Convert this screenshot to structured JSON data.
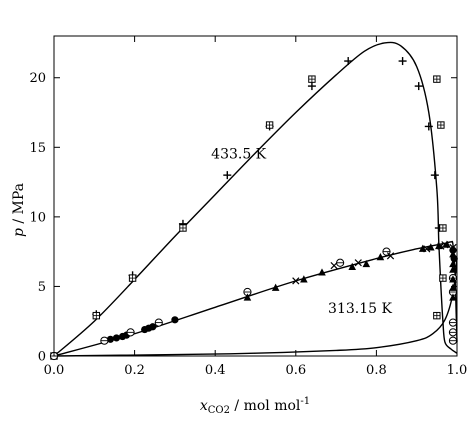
{
  "chart_data": {
    "type": "scatter",
    "xlabel": {
      "main": "x",
      "sub": "CO2",
      "rest": " / mol mol",
      "sup": "-1"
    },
    "ylabel": {
      "italic": "p",
      "rest": " / MPa"
    },
    "xlim": [
      0.0,
      1.0
    ],
    "ylim": [
      0,
      23
    ],
    "xticks": [
      0.0,
      0.2,
      0.4,
      0.6,
      0.8,
      1.0
    ],
    "xtick_labels": [
      "0.0",
      "0.2",
      "0.4",
      "0.6",
      "0.8",
      "1.0"
    ],
    "yticks": [
      0,
      5,
      10,
      15,
      20
    ],
    "ytick_labels": [
      "0",
      "5",
      "10",
      "15",
      "20"
    ],
    "grid": false,
    "annotations": [
      {
        "text": "433.5 K",
        "x": 0.39,
        "y": 14.2
      },
      {
        "text": "313.15 K",
        "x": 0.68,
        "y": 3.1
      }
    ],
    "series": [
      {
        "kind": "line",
        "points": [
          [
            0.0,
            0.0
          ],
          [
            0.1,
            2.5
          ],
          [
            0.2,
            5.5
          ],
          [
            0.3,
            8.6
          ],
          [
            0.4,
            11.6
          ],
          [
            0.5,
            14.6
          ],
          [
            0.6,
            17.5
          ],
          [
            0.7,
            20.2
          ],
          [
            0.77,
            21.9
          ],
          [
            0.82,
            22.5
          ],
          [
            0.86,
            22.3
          ],
          [
            0.9,
            20.8
          ],
          [
            0.93,
            17.5
          ],
          [
            0.95,
            12.0
          ],
          [
            0.955,
            8.0
          ],
          [
            0.96,
            5.0
          ],
          [
            0.965,
            2.5
          ],
          [
            0.97,
            1.0
          ],
          [
            0.985,
            0.5
          ],
          [
            1.0,
            0.2
          ]
        ]
      },
      {
        "kind": "line",
        "points": [
          [
            0.0,
            0.0
          ],
          [
            0.2,
            1.6
          ],
          [
            0.4,
            3.5
          ],
          [
            0.6,
            5.4
          ],
          [
            0.8,
            7.0
          ],
          [
            0.9,
            7.7
          ],
          [
            0.97,
            8.1
          ],
          [
            0.985,
            8.2
          ],
          [
            0.99,
            8.0
          ],
          [
            0.995,
            6.0
          ],
          [
            0.998,
            3.0
          ],
          [
            1.0,
            1.0
          ]
        ]
      },
      {
        "kind": "line",
        "points": [
          [
            0.0,
            0.0
          ],
          [
            0.3,
            0.1
          ],
          [
            0.5,
            0.2
          ],
          [
            0.7,
            0.4
          ],
          [
            0.8,
            0.6
          ],
          [
            0.9,
            1.1
          ],
          [
            0.94,
            1.6
          ],
          [
            0.97,
            2.6
          ],
          [
            0.99,
            4.5
          ],
          [
            1.0,
            7.0
          ]
        ]
      },
      {
        "marker": "plus",
        "points": [
          [
            0.105,
            3.0
          ],
          [
            0.195,
            5.8
          ],
          [
            0.32,
            9.5
          ],
          [
            0.43,
            13.0
          ],
          [
            0.535,
            16.5
          ],
          [
            0.64,
            19.4
          ],
          [
            0.73,
            21.2
          ],
          [
            0.865,
            21.2
          ],
          [
            0.905,
            19.4
          ],
          [
            0.93,
            16.5
          ],
          [
            0.945,
            13.0
          ],
          [
            0.955,
            9.2
          ],
          [
            0.0,
            0.0
          ]
        ]
      },
      {
        "marker": "boxed-plus",
        "points": [
          [
            0.105,
            2.9
          ],
          [
            0.195,
            5.6
          ],
          [
            0.32,
            9.2
          ],
          [
            0.535,
            16.6
          ],
          [
            0.64,
            19.9
          ],
          [
            0.95,
            19.9
          ],
          [
            0.96,
            16.6
          ],
          [
            0.965,
            9.2
          ],
          [
            0.965,
            5.6
          ],
          [
            0.95,
            2.9
          ],
          [
            0.0,
            0.0
          ]
        ]
      },
      {
        "marker": "filled-circle",
        "points": [
          [
            0.0,
            0.0
          ],
          [
            0.14,
            1.2
          ],
          [
            0.155,
            1.3
          ],
          [
            0.17,
            1.4
          ],
          [
            0.18,
            1.5
          ],
          [
            0.225,
            1.9
          ],
          [
            0.235,
            2.0
          ],
          [
            0.245,
            2.1
          ],
          [
            0.3,
            2.6
          ],
          [
            0.99,
            7.6
          ],
          [
            0.993,
            7.0
          ]
        ]
      },
      {
        "marker": "circle-line",
        "points": [
          [
            0.0,
            0.0
          ],
          [
            0.125,
            1.1
          ],
          [
            0.19,
            1.7
          ],
          [
            0.26,
            2.4
          ],
          [
            0.48,
            4.6
          ],
          [
            0.71,
            6.7
          ],
          [
            0.825,
            7.5
          ],
          [
            0.99,
            5.6
          ],
          [
            0.99,
            4.6
          ],
          [
            0.99,
            2.4
          ],
          [
            0.99,
            1.7
          ],
          [
            0.99,
            1.1
          ]
        ]
      },
      {
        "marker": "triangle",
        "points": [
          [
            0.48,
            4.2
          ],
          [
            0.55,
            4.9
          ],
          [
            0.62,
            5.5
          ],
          [
            0.665,
            6.0
          ],
          [
            0.74,
            6.4
          ],
          [
            0.775,
            6.6
          ],
          [
            0.81,
            7.1
          ],
          [
            0.915,
            7.7
          ],
          [
            0.935,
            7.8
          ],
          [
            0.955,
            7.9
          ],
          [
            0.975,
            8.0
          ],
          [
            0.99,
            7.3
          ],
          [
            0.99,
            6.6
          ],
          [
            0.99,
            6.2
          ],
          [
            0.99,
            5.5
          ],
          [
            0.99,
            4.9
          ],
          [
            0.99,
            4.2
          ]
        ]
      },
      {
        "marker": "cross",
        "points": [
          [
            0.6,
            5.4
          ],
          [
            0.695,
            6.5
          ],
          [
            0.755,
            6.7
          ],
          [
            0.835,
            7.2
          ],
          [
            0.925,
            7.7
          ],
          [
            0.96,
            7.9
          ],
          [
            0.97,
            8.0
          ],
          [
            0.99,
            7.8
          ]
        ]
      }
    ]
  }
}
